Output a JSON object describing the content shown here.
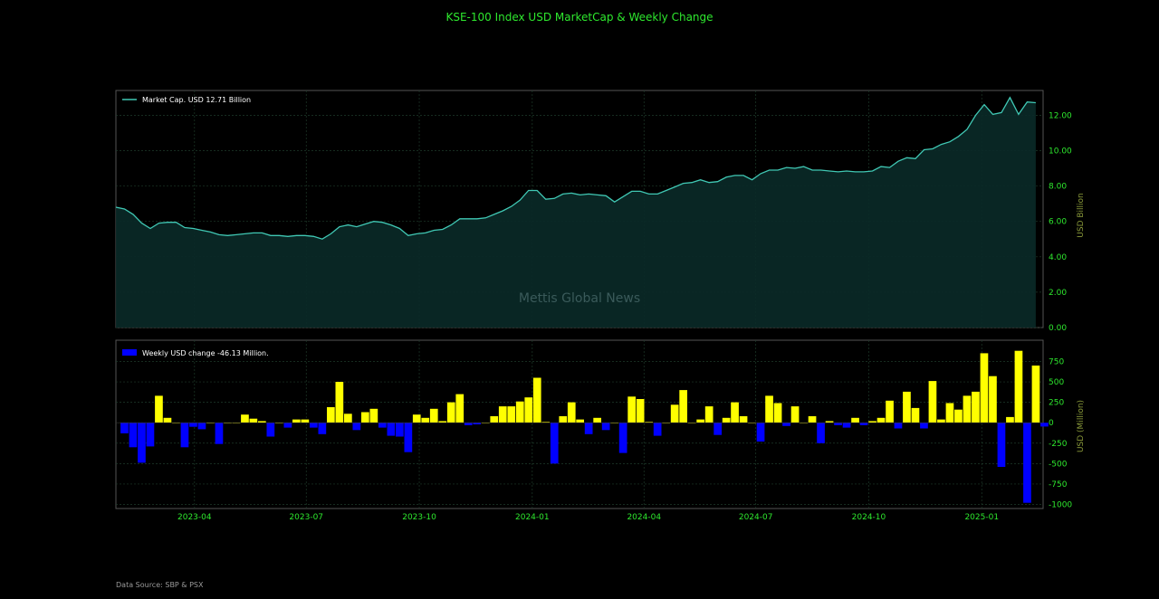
{
  "title": "KSE-100 Index USD MarketCap & Weekly Change",
  "watermark": "Mettis Global News",
  "footer": "Data Source: SBP & PSX",
  "colors": {
    "background": "#000000",
    "line": "#40c8b4",
    "area": "#0a2a28",
    "positive_bar": "#ffff00",
    "negative_bar": "#0000ff",
    "tick_text": "#2ee82e",
    "grid": "#1e3a2a"
  },
  "chart_data": [
    {
      "type": "area",
      "legend": "Market Cap. USD 12.71 Billion",
      "legend_position": "top-left",
      "ylabel": "USD Billion",
      "ylim": [
        0,
        13.4
      ],
      "yticks": [
        "0.00",
        "2.00",
        "4.00",
        "6.00",
        "8.00",
        "10.00",
        "12.00"
      ],
      "ytick_values": [
        0,
        2,
        4,
        6,
        8,
        10,
        12
      ],
      "xlim": [
        "2023-01-27",
        "2025-02-17"
      ],
      "xticks": [
        "2023-04",
        "2023-07",
        "2023-10",
        "2024-01",
        "2024-04",
        "2024-07",
        "2024-10",
        "2025-01"
      ],
      "xtick_dates": [
        "2023-04-01",
        "2023-07-01",
        "2023-10-01",
        "2024-01-01",
        "2024-04-01",
        "2024-07-01",
        "2024-10-01",
        "2025-01-01"
      ],
      "grid": true,
      "start_date": "2023-01-27",
      "step_days": 7,
      "values": [
        6.8,
        6.7,
        6.4,
        5.9,
        5.6,
        5.9,
        5.95,
        5.95,
        5.65,
        5.6,
        5.5,
        5.4,
        5.25,
        5.2,
        5.25,
        5.3,
        5.35,
        5.35,
        5.2,
        5.2,
        5.15,
        5.2,
        5.2,
        5.15,
        5.0,
        5.3,
        5.7,
        5.8,
        5.7,
        5.85,
        6.0,
        5.95,
        5.8,
        5.6,
        5.2,
        5.3,
        5.35,
        5.5,
        5.55,
        5.8,
        6.15,
        6.15,
        6.15,
        6.2,
        6.4,
        6.6,
        6.85,
        7.2,
        7.75,
        7.75,
        7.25,
        7.3,
        7.55,
        7.6,
        7.5,
        7.55,
        7.5,
        7.45,
        7.1,
        7.4,
        7.7,
        7.7,
        7.55,
        7.55,
        7.75,
        7.95,
        8.15,
        8.2,
        8.35,
        8.2,
        8.25,
        8.5,
        8.6,
        8.6,
        8.35,
        8.7,
        8.9,
        8.9,
        9.05,
        9.0,
        9.1,
        8.9,
        8.9,
        8.85,
        8.8,
        8.85,
        8.8,
        8.8,
        8.85,
        9.1,
        9.05,
        9.4,
        9.6,
        9.55,
        10.05,
        10.1,
        10.35,
        10.5,
        10.8,
        11.2,
        12.0,
        12.6,
        12.05,
        12.15,
        13.0,
        12.05,
        12.75,
        12.71
      ]
    },
    {
      "type": "bar",
      "legend": "Weekly USD change -46.13 Million.",
      "legend_position": "top-left",
      "ylabel": "USD (Million)",
      "ylim": [
        -1050,
        1010
      ],
      "yticks": [
        "-1000",
        "-750",
        "-500",
        "-250",
        "0",
        "250",
        "500",
        "750"
      ],
      "ytick_values": [
        -1000,
        -750,
        -500,
        -250,
        0,
        250,
        500,
        750
      ],
      "grid": true,
      "start_date": "2023-02-03",
      "step_days": 7,
      "values": [
        -130,
        -300,
        -490,
        -290,
        330,
        60,
        0,
        -300,
        -50,
        -80,
        0,
        -260,
        0,
        0,
        100,
        50,
        20,
        -170,
        0,
        -60,
        40,
        40,
        -60,
        -140,
        190,
        500,
        110,
        -90,
        130,
        170,
        -60,
        -160,
        -170,
        -360,
        100,
        60,
        170,
        20,
        250,
        350,
        -30,
        -20,
        0,
        80,
        200,
        200,
        260,
        310,
        550,
        10,
        -500,
        80,
        250,
        40,
        -140,
        60,
        -90,
        0,
        -370,
        320,
        290,
        10,
        -160,
        0,
        220,
        400,
        0,
        40,
        200,
        -150,
        60,
        250,
        80,
        0,
        -230,
        330,
        240,
        -40,
        200,
        0,
        80,
        -250,
        20,
        -30,
        -60,
        60,
        -30,
        20,
        60,
        270,
        -70,
        380,
        180,
        -70,
        510,
        40,
        240,
        160,
        330,
        380,
        850,
        570,
        -540,
        70,
        880,
        -980,
        700,
        -46.13
      ]
    }
  ]
}
